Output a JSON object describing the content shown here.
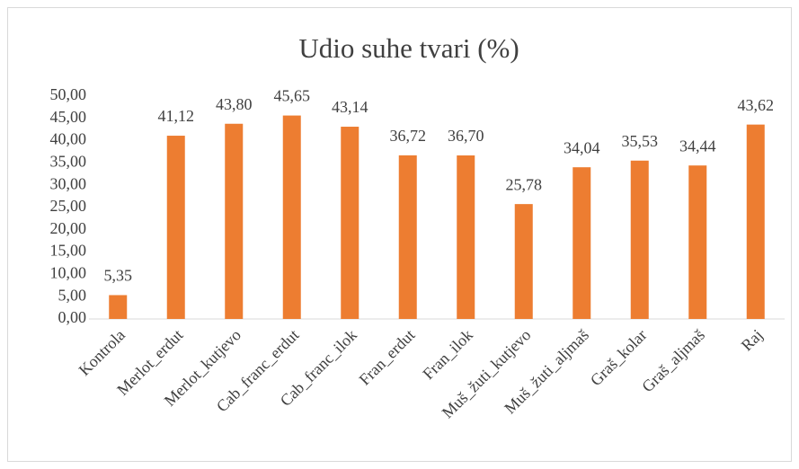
{
  "chart_data": {
    "type": "bar",
    "title": "Udio suhe tvari (%)",
    "categories": [
      "Kontrola",
      "Merlot_erdut",
      "Merlot_kutjevo",
      "Cab_franc_erdut",
      "Cab_franc_ilok",
      "Fran_erdut",
      "Fran_ilok",
      "Muš_žuti_kutjevo",
      "Muš_žuti_aljmaš",
      "Graš_kolar",
      "Graš_aljmaš",
      "Raj"
    ],
    "values": [
      5.35,
      41.12,
      43.8,
      45.65,
      43.14,
      36.72,
      36.7,
      25.78,
      34.04,
      35.53,
      34.44,
      43.62
    ],
    "value_labels": [
      "5,35",
      "41,12",
      "43,80",
      "45,65",
      "43,14",
      "36,72",
      "36,70",
      "25,78",
      "34,04",
      "35,53",
      "34,44",
      "43,62"
    ],
    "color": "#ed7d31",
    "ylim": [
      0,
      50
    ],
    "yticks": [
      {
        "value": 0,
        "label": "0,00"
      },
      {
        "value": 5,
        "label": "5,00"
      },
      {
        "value": 10,
        "label": "10,00"
      },
      {
        "value": 15,
        "label": "15,00"
      },
      {
        "value": 20,
        "label": "20,00"
      },
      {
        "value": 25,
        "label": "25,00"
      },
      {
        "value": 30,
        "label": "30,00"
      },
      {
        "value": 35,
        "label": "35,00"
      },
      {
        "value": 40,
        "label": "40,00"
      },
      {
        "value": 45,
        "label": "45,00"
      },
      {
        "value": 50,
        "label": "50,00"
      }
    ],
    "grid": false
  }
}
